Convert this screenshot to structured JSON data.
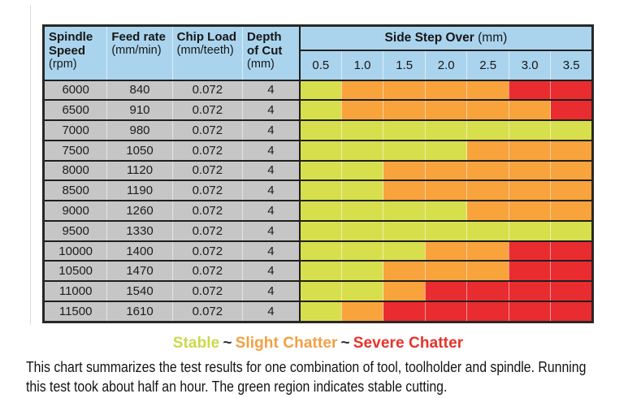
{
  "table": {
    "columns": [
      {
        "title": "Spindle Speed",
        "unit": "(rpm)"
      },
      {
        "title": "Feed rate",
        "unit": "(mm/min)"
      },
      {
        "title": "Chip Load",
        "unit": "(mm/teeth)"
      },
      {
        "title": "Depth of Cut",
        "unit": "(mm)"
      }
    ],
    "group_header": {
      "title": "Side Step Over",
      "unit": "(mm)"
    }
  },
  "legend": {
    "items": [
      {
        "text": "Stable",
        "color": "#c9d94a"
      },
      {
        "text": "~",
        "color": "#333333"
      },
      {
        "text": "Slight Chatter",
        "color": "#f2a044"
      },
      {
        "text": "~",
        "color": "#333333"
      },
      {
        "text": "Severe Chatter",
        "color": "#e63229"
      }
    ]
  },
  "footer": {
    "lines": [
      "This chart summarizes the test results for one combination of tool, toolholder and spindle. Running",
      "this test took about half an hour. The green region indicates stable cutting."
    ]
  },
  "colors": {
    "header_bg": "#aad4ed",
    "param_bg": "#c6c6c6",
    "grid_line": "#1f1f1f"
  },
  "chart_data": {
    "type": "heatmap",
    "title": "Side Step Over (mm)",
    "x_categories": [
      "0.5",
      "1.0",
      "1.5",
      "2.0",
      "2.5",
      "3.0",
      "3.5"
    ],
    "x_label": "Side Step Over (mm)",
    "y_label": "Spindle Speed (rpm)",
    "legend_position": "bottom",
    "status_levels": [
      "stable",
      "slight",
      "severe"
    ],
    "status_labels": {
      "stable": "Stable",
      "slight": "Slight Chatter",
      "severe": "Severe Chatter"
    },
    "status_colors": {
      "stable": "#d8df4c",
      "slight": "#f8a33c",
      "severe": "#e92c30"
    },
    "rows": [
      {
        "spindle_speed_rpm": "6000",
        "feed_rate_mm_min": "840",
        "chip_load_mm_teeth": "0.072",
        "depth_of_cut_mm": "4",
        "statuses": [
          "stable",
          "slight",
          "slight",
          "slight",
          "slight",
          "severe",
          "severe"
        ]
      },
      {
        "spindle_speed_rpm": "6500",
        "feed_rate_mm_min": "910",
        "chip_load_mm_teeth": "0.072",
        "depth_of_cut_mm": "4",
        "statuses": [
          "stable",
          "slight",
          "slight",
          "slight",
          "slight",
          "slight",
          "severe"
        ]
      },
      {
        "spindle_speed_rpm": "7000",
        "feed_rate_mm_min": "980",
        "chip_load_mm_teeth": "0.072",
        "depth_of_cut_mm": "4",
        "statuses": [
          "stable",
          "stable",
          "stable",
          "stable",
          "stable",
          "stable",
          "stable"
        ]
      },
      {
        "spindle_speed_rpm": "7500",
        "feed_rate_mm_min": "1050",
        "chip_load_mm_teeth": "0.072",
        "depth_of_cut_mm": "4",
        "statuses": [
          "stable",
          "stable",
          "stable",
          "stable",
          "slight",
          "slight",
          "slight"
        ]
      },
      {
        "spindle_speed_rpm": "8000",
        "feed_rate_mm_min": "1120",
        "chip_load_mm_teeth": "0.072",
        "depth_of_cut_mm": "4",
        "statuses": [
          "stable",
          "stable",
          "slight",
          "slight",
          "slight",
          "slight",
          "slight"
        ]
      },
      {
        "spindle_speed_rpm": "8500",
        "feed_rate_mm_min": "1190",
        "chip_load_mm_teeth": "0.072",
        "depth_of_cut_mm": "4",
        "statuses": [
          "stable",
          "stable",
          "slight",
          "slight",
          "slight",
          "slight",
          "slight"
        ]
      },
      {
        "spindle_speed_rpm": "9000",
        "feed_rate_mm_min": "1260",
        "chip_load_mm_teeth": "0.072",
        "depth_of_cut_mm": "4",
        "statuses": [
          "stable",
          "stable",
          "stable",
          "stable",
          "slight",
          "slight",
          "slight"
        ]
      },
      {
        "spindle_speed_rpm": "9500",
        "feed_rate_mm_min": "1330",
        "chip_load_mm_teeth": "0.072",
        "depth_of_cut_mm": "4",
        "statuses": [
          "stable",
          "stable",
          "stable",
          "stable",
          "stable",
          "stable",
          "stable"
        ]
      },
      {
        "spindle_speed_rpm": "10000",
        "feed_rate_mm_min": "1400",
        "chip_load_mm_teeth": "0.072",
        "depth_of_cut_mm": "4",
        "statuses": [
          "stable",
          "stable",
          "stable",
          "slight",
          "slight",
          "severe",
          "severe"
        ]
      },
      {
        "spindle_speed_rpm": "10500",
        "feed_rate_mm_min": "1470",
        "chip_load_mm_teeth": "0.072",
        "depth_of_cut_mm": "4",
        "statuses": [
          "stable",
          "stable",
          "slight",
          "slight",
          "slight",
          "severe",
          "severe"
        ]
      },
      {
        "spindle_speed_rpm": "11000",
        "feed_rate_mm_min": "1540",
        "chip_load_mm_teeth": "0.072",
        "depth_of_cut_mm": "4",
        "statuses": [
          "stable",
          "stable",
          "slight",
          "severe",
          "severe",
          "severe",
          "severe"
        ]
      },
      {
        "spindle_speed_rpm": "11500",
        "feed_rate_mm_min": "1610",
        "chip_load_mm_teeth": "0.072",
        "depth_of_cut_mm": "4",
        "statuses": [
          "stable",
          "slight",
          "severe",
          "severe",
          "severe",
          "severe",
          "severe"
        ]
      }
    ]
  }
}
